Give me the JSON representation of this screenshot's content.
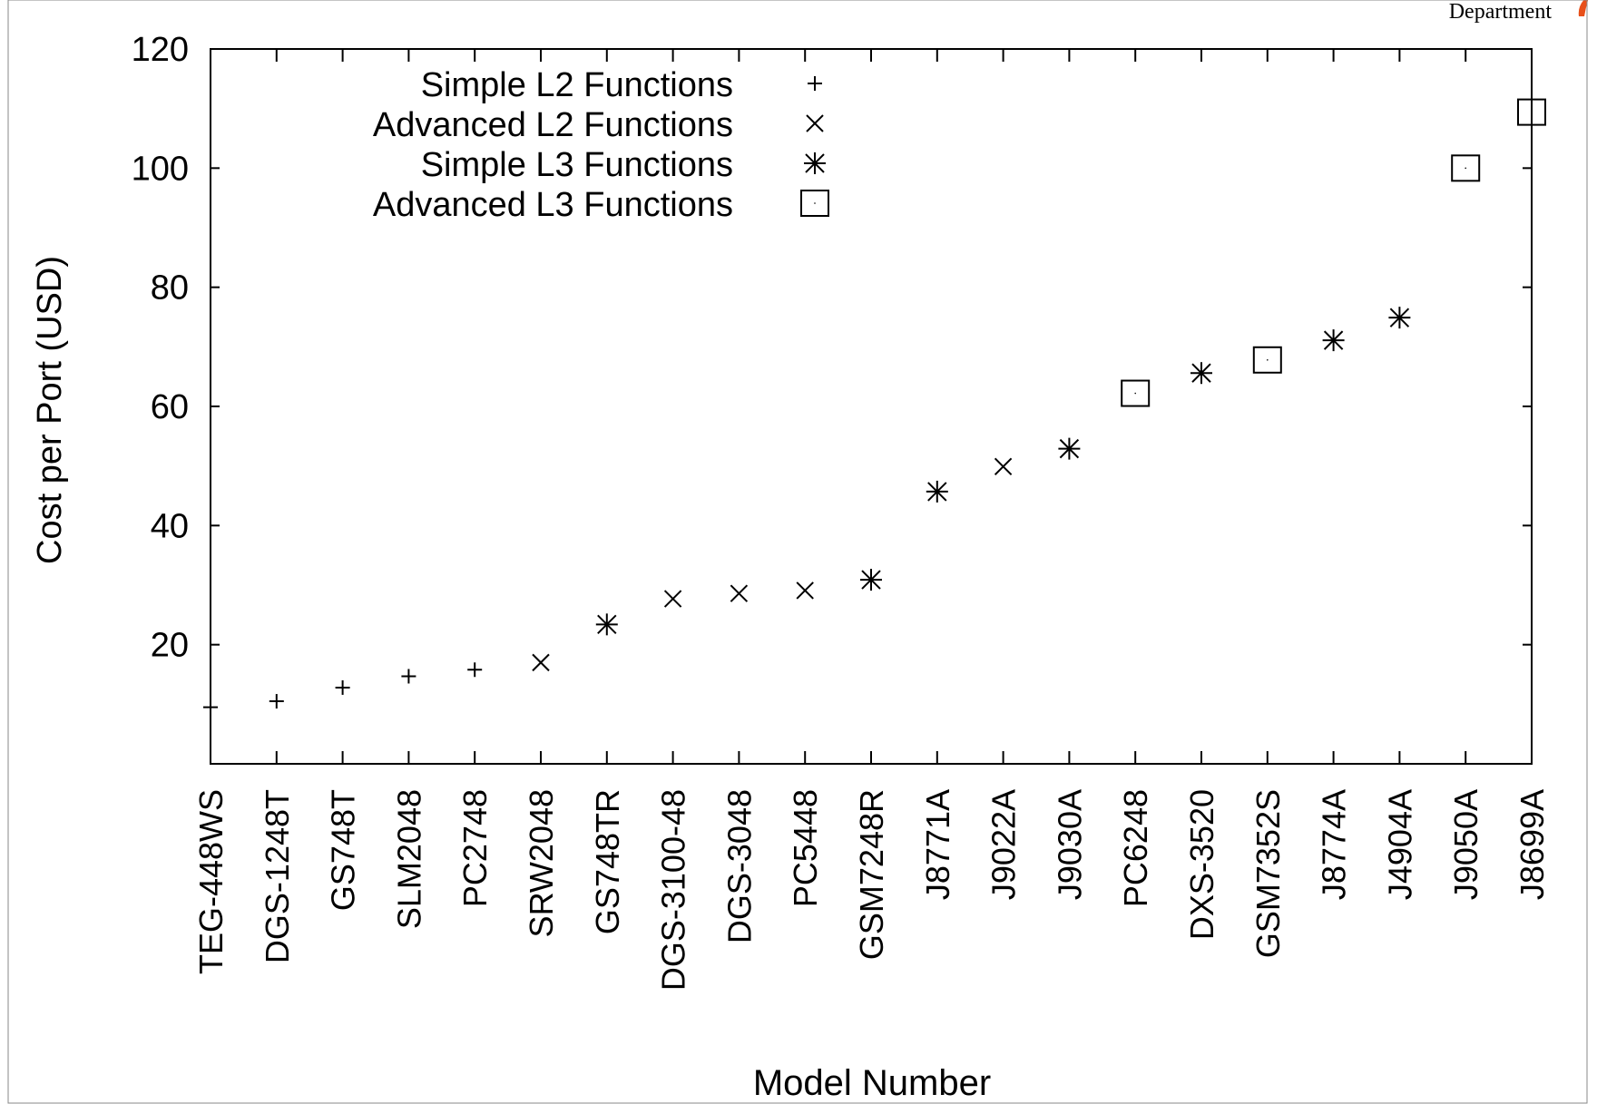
{
  "header": {
    "department_label": "Department"
  },
  "colors": {
    "ink": "#000000",
    "background": "#ffffff",
    "logo_accent": "#e8501a"
  },
  "chart_data": {
    "type": "scatter",
    "title": "",
    "xlabel": "Model Number",
    "ylabel": "Cost per Port (USD)",
    "ylim": [
      0,
      120
    ],
    "yticks": [
      20,
      40,
      60,
      80,
      100,
      120
    ],
    "grid": false,
    "legend_position": "top-left",
    "categories": [
      "TEG-448WS",
      "DGS-1248T",
      "GS748T",
      "SLM2048",
      "PC2748",
      "SRW2048",
      "GS748TR",
      "DGS-3100-48",
      "DGS-3048",
      "PC5448",
      "GSM7248R",
      "J8771A",
      "J9022A",
      "J9030A",
      "PC6248",
      "DXS-3520",
      "GSM7352S",
      "J8774A",
      "J4904A",
      "J9050A",
      "J8699A"
    ],
    "series": [
      {
        "name": "Simple L2 Functions",
        "marker": "plus",
        "points": [
          {
            "x": "TEG-448WS",
            "y": 9.5
          },
          {
            "x": "DGS-1248T",
            "y": 10.5
          },
          {
            "x": "GS748T",
            "y": 12.8
          },
          {
            "x": "SLM2048",
            "y": 14.7
          },
          {
            "x": "PC2748",
            "y": 15.8
          }
        ]
      },
      {
        "name": "Advanced L2 Functions",
        "marker": "cross",
        "points": [
          {
            "x": "SRW2048",
            "y": 17.0
          },
          {
            "x": "DGS-3100-48",
            "y": 27.7
          },
          {
            "x": "DGS-3048",
            "y": 28.6
          },
          {
            "x": "PC5448",
            "y": 29.1
          },
          {
            "x": "J9022A",
            "y": 49.9
          }
        ]
      },
      {
        "name": "Simple L3 Functions",
        "marker": "star",
        "points": [
          {
            "x": "GS748TR",
            "y": 23.4
          },
          {
            "x": "GSM7248R",
            "y": 30.9
          },
          {
            "x": "J8771A",
            "y": 45.7
          },
          {
            "x": "J9030A",
            "y": 52.9
          },
          {
            "x": "DXS-3520",
            "y": 65.6
          },
          {
            "x": "J8774A",
            "y": 71.1
          },
          {
            "x": "J4904A",
            "y": 74.9
          }
        ]
      },
      {
        "name": "Advanced L3 Functions",
        "marker": "square",
        "points": [
          {
            "x": "PC6248",
            "y": 62.2
          },
          {
            "x": "GSM7352S",
            "y": 67.8
          },
          {
            "x": "J9050A",
            "y": 100.0
          },
          {
            "x": "J8699A",
            "y": 109.4
          }
        ]
      }
    ]
  }
}
